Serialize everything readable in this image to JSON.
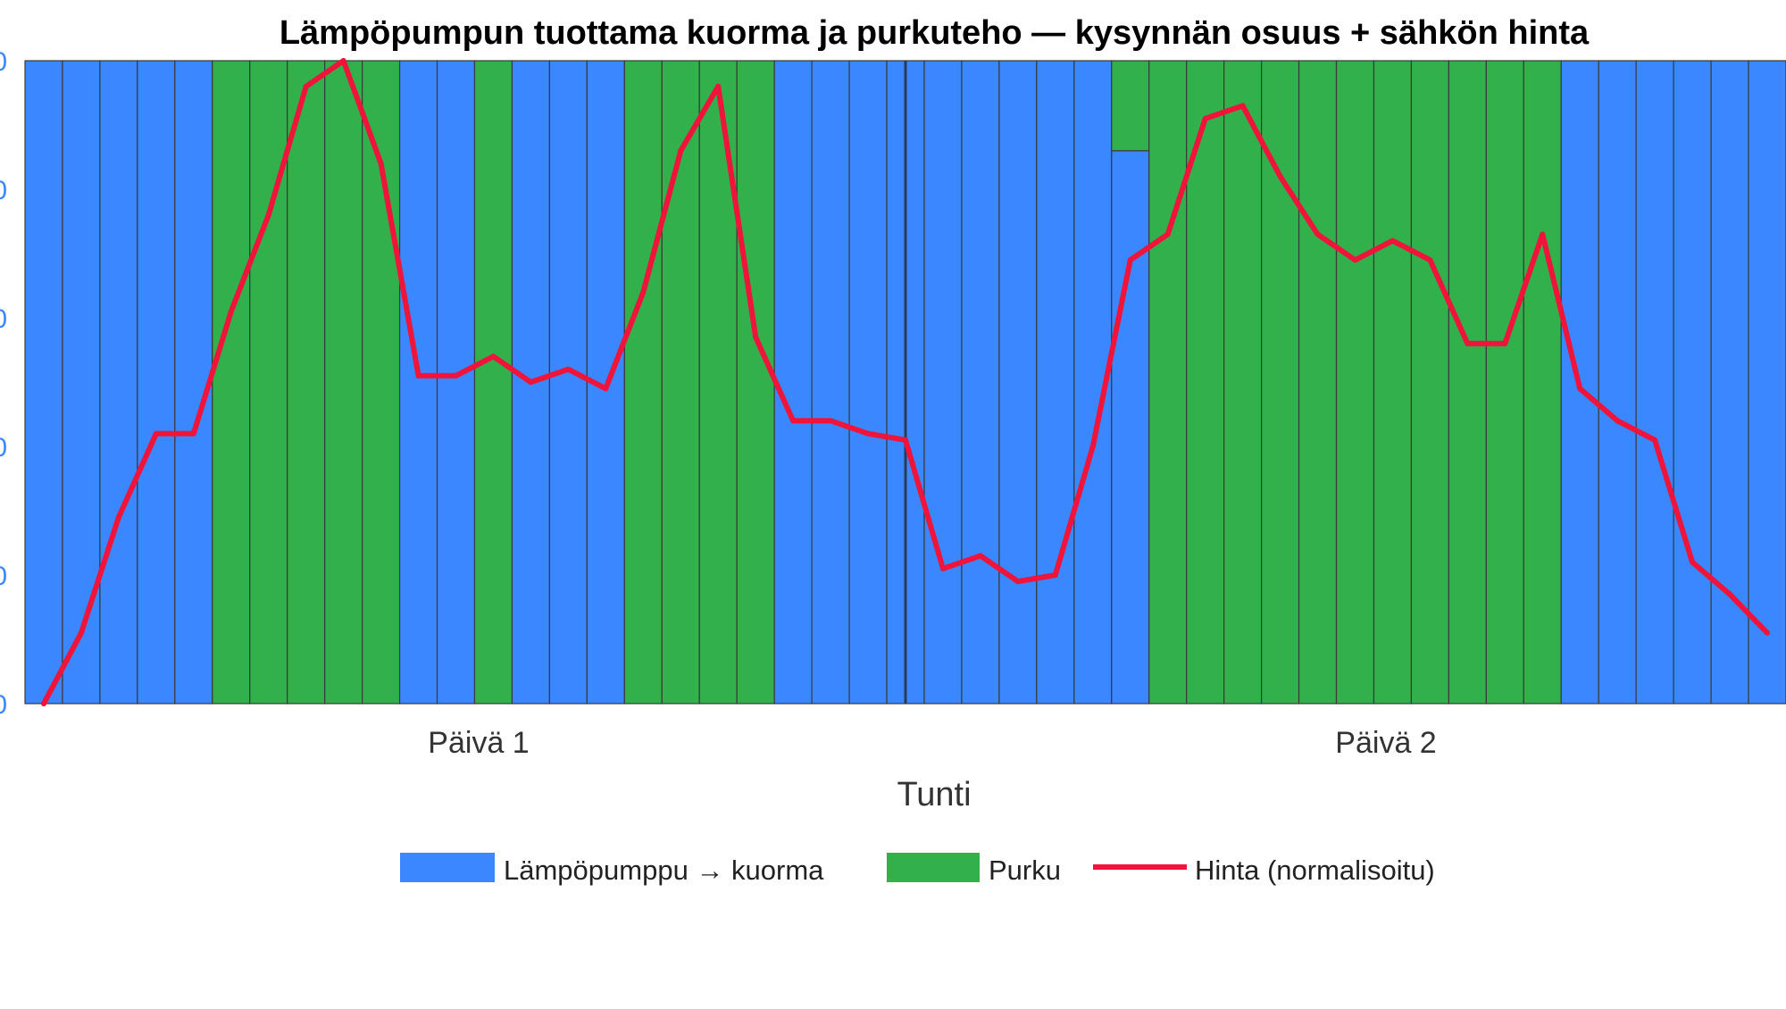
{
  "chart_data": {
    "type": "bar",
    "title": "Lämpöpumpun tuottama kuorma ja purkuteho — kysynnän osuus + sähkön hinta",
    "xlabel": "Tunti",
    "ylabel": "",
    "x_tick_labels": [
      "Päivä 1",
      "Päivä 2"
    ],
    "y_tick_labels": [
      "0",
      "0",
      "0",
      "0",
      "0",
      "0"
    ],
    "ylim": [
      0,
      1
    ],
    "stacked": true,
    "grid": false,
    "legend_position": "bottom",
    "hours": [
      1,
      2,
      3,
      4,
      5,
      6,
      7,
      8,
      9,
      10,
      11,
      12,
      13,
      14,
      15,
      16,
      17,
      18,
      19,
      20,
      21,
      22,
      23,
      24,
      25,
      26,
      27,
      28,
      29,
      30,
      31,
      32,
      33,
      34,
      35,
      36,
      37,
      38,
      39,
      40,
      41,
      42,
      43,
      44,
      45,
      46,
      47
    ],
    "series": [
      {
        "name": "Lämpöpumppu → kuorma",
        "color": "#3b87ff",
        "kind": "bar",
        "values": [
          1,
          1,
          1,
          1,
          1,
          0,
          0,
          0,
          0,
          0,
          1,
          1,
          0,
          1,
          1,
          1,
          0,
          0,
          0,
          0,
          1,
          1,
          1,
          1,
          1,
          1,
          1,
          1,
          1,
          0.86,
          0,
          0,
          0,
          0,
          0,
          0,
          0,
          0,
          0,
          0,
          0,
          1,
          1,
          1,
          1,
          1,
          1
        ]
      },
      {
        "name": "Purku",
        "color": "#31b04c",
        "kind": "bar",
        "values": [
          0,
          0,
          0,
          0,
          0,
          1,
          1,
          1,
          1,
          1,
          0,
          0,
          1,
          0,
          0,
          0,
          1,
          1,
          1,
          1,
          0,
          0,
          0,
          0,
          0,
          0,
          0,
          0,
          0,
          0.14,
          1,
          1,
          1,
          1,
          1,
          1,
          1,
          1,
          1,
          1,
          1,
          0,
          0,
          0,
          0,
          0,
          0
        ]
      },
      {
        "name": "Hinta (normalisoitu)",
        "color": "#f0133a",
        "kind": "line",
        "x": [
          1,
          2,
          3,
          4,
          5,
          6,
          7,
          8,
          9,
          10,
          11,
          12,
          13,
          14,
          15,
          16,
          17,
          18,
          19,
          20,
          21,
          22,
          23,
          24,
          25,
          26,
          27,
          28,
          29,
          30,
          31,
          32,
          33,
          34,
          35,
          36,
          37,
          38,
          39,
          40,
          41,
          42,
          43,
          44,
          45,
          46,
          47
        ],
        "values": [
          0,
          0.11,
          0.29,
          0.42,
          0.42,
          0.61,
          0.76,
          0.96,
          1,
          0.84,
          0.51,
          0.51,
          0.54,
          0.5,
          0.52,
          0.49,
          0.64,
          0.86,
          0.96,
          0.57,
          0.44,
          0.44,
          0.42,
          0.41,
          0.21,
          0.23,
          0.19,
          0.2,
          0.4,
          0.69,
          0.73,
          0.91,
          0.93,
          0.82,
          0.73,
          0.69,
          0.72,
          0.69,
          0.56,
          0.56,
          0.73,
          0.49,
          0.44,
          0.41,
          0.22,
          0.17,
          0.11
        ]
      }
    ]
  }
}
